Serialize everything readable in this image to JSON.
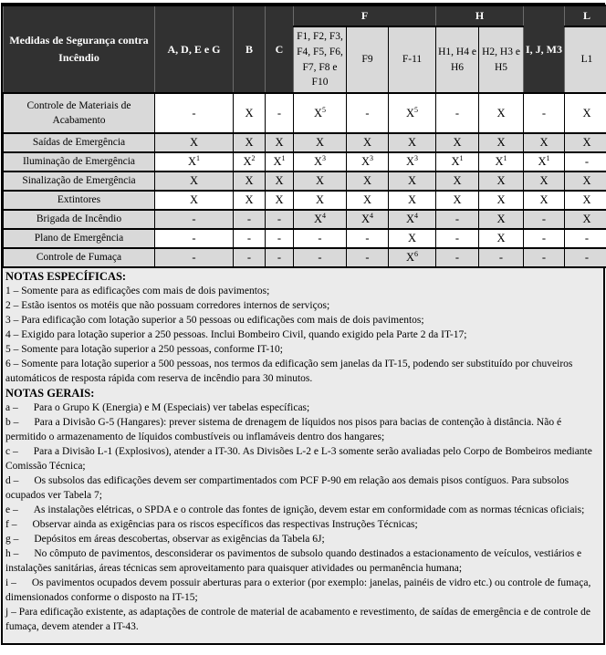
{
  "table": {
    "corner_label": "Medidas de Segurança contra Incêndio",
    "columns": [
      {
        "label": "A, D, E e G",
        "type": "dark"
      },
      {
        "label": "B",
        "type": "dark"
      },
      {
        "label": "C",
        "type": "dark"
      },
      {
        "label": "F1, F2, F3, F4, F5, F6, F7, F8 e F10",
        "group": "F",
        "type": "light"
      },
      {
        "label": "F9",
        "group": "F",
        "type": "light"
      },
      {
        "label": "F-11",
        "group": "F",
        "type": "light"
      },
      {
        "label": "H1, H4 e H6",
        "group": "H",
        "type": "light"
      },
      {
        "label": "H2, H3 e H5",
        "group": "H",
        "type": "light"
      },
      {
        "label": "I, J, M3",
        "type": "dark"
      },
      {
        "label": "L1",
        "group": "L",
        "type": "light"
      }
    ],
    "rows": [
      {
        "label": "Controle de Materiais de Acabamento",
        "shaded": false,
        "cells": [
          "-",
          "X",
          "-",
          "X^5",
          "-",
          "X^5",
          "-",
          "X",
          "-",
          "X"
        ]
      },
      {
        "label": "Saídas de Emergência",
        "shaded": true,
        "cells": [
          "X",
          "X",
          "X",
          "X",
          "X",
          "X",
          "X",
          "X",
          "X",
          "X"
        ]
      },
      {
        "label": "Iluminação de Emergência",
        "shaded": false,
        "cells": [
          "X^1",
          "X^2",
          "X^1",
          "X^3",
          "X^3",
          "X^3",
          "X^1",
          "X^1",
          "X^1",
          "-"
        ]
      },
      {
        "label": "Sinalização de Emergência",
        "shaded": true,
        "cells": [
          "X",
          "X",
          "X",
          "X",
          "X",
          "X",
          "X",
          "X",
          "X",
          "X"
        ]
      },
      {
        "label": "Extintores",
        "shaded": false,
        "cells": [
          "X",
          "X",
          "X",
          "X",
          "X",
          "X",
          "X",
          "X",
          "X",
          "X"
        ]
      },
      {
        "label": "Brigada de Incêndio",
        "shaded": true,
        "cells": [
          "-",
          "-",
          "-",
          "X^4",
          "X^4",
          "X^4",
          "-",
          "X",
          "-",
          "X"
        ]
      },
      {
        "label": "Plano de Emergência",
        "shaded": false,
        "cells": [
          "-",
          "-",
          "-",
          "-",
          "-",
          "X",
          "-",
          "X",
          "-",
          "-"
        ]
      },
      {
        "label": "Controle de Fumaça",
        "shaded": true,
        "cells": [
          "-",
          "-",
          "-",
          "-",
          "-",
          "X^6",
          "-",
          "-",
          "-",
          "-"
        ]
      }
    ]
  },
  "notes": {
    "specific_title": "NOTAS ESPECÍFICAS:",
    "specific": [
      "1 – Somente para as edificações com mais de dois pavimentos;",
      "2 – Estão isentos os motéis que não possuam corredores internos de serviços;",
      "3 – Para edificação com lotação superior a 50 pessoas ou edificações com mais de dois pavimentos;",
      "4 – Exigido para lotação superior a 250 pessoas. Inclui Bombeiro Civil, quando exigido pela Parte 2 da IT-17;",
      "5 – Somente para lotação superior a 250 pessoas, conforme IT-10;",
      "6 – Somente para lotação superior a 500 pessoas, nos termos da edificação sem janelas da IT-15, podendo ser substituído por chuveiros automáticos de resposta rápida com reserva de incêndio para 30 minutos."
    ],
    "general_title": "NOTAS GERAIS:",
    "general": [
      {
        "label": "a –",
        "gap": true,
        "text": "Para o Grupo K (Energia) e M (Especiais) ver tabelas específicas;"
      },
      {
        "label": "b –",
        "gap": true,
        "text": "Para a Divisão G-5 (Hangares): prever sistema de drenagem de líquidos nos pisos para bacias de contenção à distância. Não é permitido o armazenamento de líquidos combustíveis ou inflamáveis dentro dos hangares;"
      },
      {
        "label": "c –",
        "gap": true,
        "text": "Para a Divisão L-1 (Explosivos), atender a IT-30. As Divisões L-2 e L-3 somente serão avaliadas pelo Corpo de Bombeiros mediante Comissão Técnica;"
      },
      {
        "label": "d –",
        "gap": true,
        "text": "Os subsolos das edificações devem ser compartimentados com PCF P-90 em relação aos demais pisos contíguos. Para subsolos ocupados ver Tabela 7;"
      },
      {
        "label": "e –",
        "gap": true,
        "text": "As instalações elétricas, o SPDA e o controle das fontes de ignição, devem estar em conformidade com as normas técnicas oficiais;"
      },
      {
        "label": "f –",
        "gap": true,
        "text": "Observar ainda as exigências para os riscos específicos das respectivas Instruções Técnicas;"
      },
      {
        "label": "g –",
        "gap": true,
        "text": "Depósitos em áreas descobertas, observar as exigências da Tabela 6J;"
      },
      {
        "label": "h –",
        "gap": true,
        "text": "No cômputo de pavimentos, desconsiderar os pavimentos de subsolo quando destinados a estacionamento de veículos, vestiários e instalações sanitárias, áreas técnicas sem aproveitamento para quaisquer atividades ou permanência humana;"
      },
      {
        "label": "i –",
        "gap": true,
        "text": "Os pavimentos ocupados devem possuir aberturas para o exterior (por exemplo: janelas, painéis de vidro etc.) ou controle de fumaça, dimensionados conforme o disposto na IT-15;"
      },
      {
        "label": "j –",
        "gap": false,
        "text": "Para edificação existente, as adaptações de controle de material de acabamento e revestimento, de saídas de emergência e de controle de fumaça, devem atender a IT-43."
      }
    ]
  },
  "colors": {
    "header_dark": "#313131",
    "cell_shaded": "#d9d9d9",
    "cell_white": "#ffffff",
    "notes_bg": "#ebebeb",
    "border": "#000000"
  }
}
